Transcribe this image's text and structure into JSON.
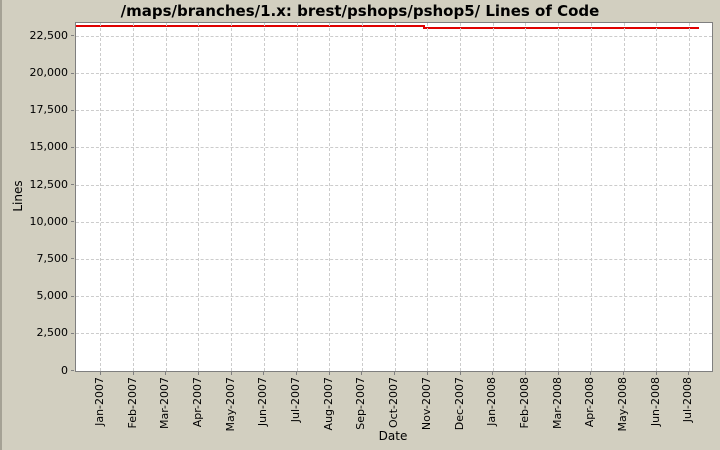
{
  "window": {
    "background_color": "#d2cfc0",
    "edge_color": "#a5a295"
  },
  "chart_data": {
    "type": "line",
    "title": "/maps/branches/1.x: brest/pshops/pshop5/ Lines of Code",
    "xlabel": "Date",
    "ylabel": "Lines",
    "legend": "none",
    "grid": "dashed",
    "plot_background": "#ffffff",
    "grid_color": "#cccccc",
    "outline_color": "#7f7f7f",
    "ylim": [
      0,
      23400
    ],
    "xlim_months": [
      -0.76,
      18.69
    ],
    "y_ticks": [
      {
        "value": 0,
        "label": "0"
      },
      {
        "value": 2500,
        "label": "2,500"
      },
      {
        "value": 5000,
        "label": "5,000"
      },
      {
        "value": 7500,
        "label": "7,500"
      },
      {
        "value": 10000,
        "label": "10,000"
      },
      {
        "value": 12500,
        "label": "12,500"
      },
      {
        "value": 15000,
        "label": "15,000"
      },
      {
        "value": 17500,
        "label": "17,500"
      },
      {
        "value": 20000,
        "label": "20,000"
      },
      {
        "value": 22500,
        "label": "22,500"
      }
    ],
    "x_tick_labels": [
      "Jan-2007",
      "Feb-2007",
      "Mar-2007",
      "Apr-2007",
      "May-2007",
      "Jun-2007",
      "Jul-2007",
      "Aug-2007",
      "Sep-2007",
      "Oct-2007",
      "Nov-2007",
      "Dec-2007",
      "Jan-2008",
      "Feb-2008",
      "Mar-2008",
      "Apr-2008",
      "May-2008",
      "Jun-2008",
      "Jul-2008"
    ],
    "series": [
      {
        "name": "Lines of Code",
        "color": "#e00000",
        "points_month_vs_lines": [
          [
            -0.76,
            23200
          ],
          [
            9.88,
            23200
          ],
          [
            9.88,
            23050
          ],
          [
            18.29,
            23050
          ]
        ]
      }
    ]
  }
}
